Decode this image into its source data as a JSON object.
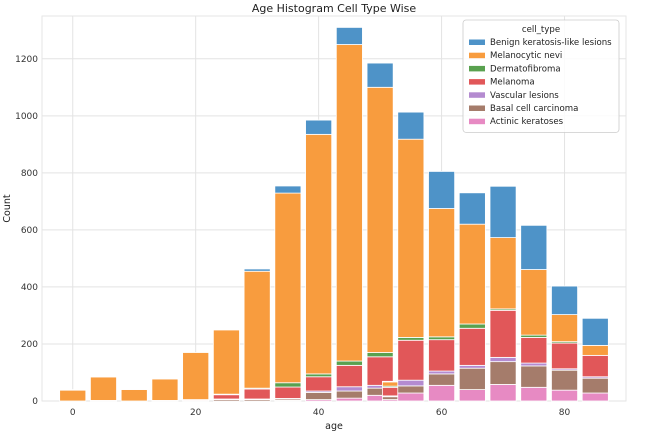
{
  "chart_data": {
    "type": "bar",
    "stacked": true,
    "title": "Age Histogram Cell Type Wise",
    "xlabel": "age",
    "ylabel": "Count",
    "xlim": [
      -5,
      90
    ],
    "ylim": [
      0,
      1350
    ],
    "xticks": [
      0,
      20,
      40,
      60,
      80
    ],
    "yticks": [
      0,
      200,
      400,
      600,
      800,
      1000,
      1200
    ],
    "grid": true,
    "legend": {
      "title": "cell_type",
      "placement": "top-right"
    },
    "bin_width": 4.25,
    "x": [
      0,
      5,
      10,
      15,
      20,
      25,
      30,
      35,
      40,
      45,
      50,
      52.5,
      55,
      60,
      65,
      70,
      75,
      80,
      85
    ],
    "series": [
      {
        "name": "Actinic keratoses",
        "color": "#e78ac3",
        "values": [
          0,
          0,
          0,
          0,
          0,
          0,
          0,
          2,
          5,
          10,
          20,
          5,
          28,
          55,
          40,
          58,
          48,
          38,
          28
        ]
      },
      {
        "name": "Basal cell carcinoma",
        "color": "#a57c6b",
        "values": [
          0,
          0,
          0,
          0,
          0,
          5,
          5,
          5,
          25,
          25,
          25,
          10,
          25,
          40,
          75,
          80,
          75,
          70,
          52
        ]
      },
      {
        "name": "Vascular lesions",
        "color": "#b48bd0",
        "values": [
          0,
          2,
          0,
          2,
          2,
          2,
          2,
          2,
          5,
          15,
          10,
          3,
          20,
          10,
          10,
          15,
          10,
          5,
          5
        ]
      },
      {
        "name": "Melanoma",
        "color": "#e15759",
        "values": [
          0,
          0,
          0,
          0,
          3,
          15,
          35,
          40,
          50,
          75,
          100,
          30,
          140,
          110,
          130,
          165,
          90,
          90,
          75
        ]
      },
      {
        "name": "Dermatofibroma",
        "color": "#59a14f",
        "values": [
          0,
          0,
          0,
          0,
          0,
          2,
          3,
          15,
          10,
          15,
          15,
          4,
          10,
          10,
          15,
          5,
          8,
          5,
          0
        ]
      },
      {
        "name": "Melanocytic nevi",
        "color": "#f89c3e",
        "values": [
          38,
          82,
          40,
          75,
          165,
          225,
          410,
          665,
          840,
          1110,
          930,
          15,
          695,
          450,
          350,
          250,
          230,
          95,
          35
        ]
      },
      {
        "name": "Benign keratosis-like lesions",
        "color": "#4e93c8",
        "values": [
          2,
          0,
          0,
          0,
          0,
          0,
          8,
          25,
          50,
          60,
          85,
          2,
          95,
          130,
          110,
          180,
          155,
          100,
          95
        ]
      }
    ],
    "legend_order": [
      "Benign keratosis-like lesions",
      "Melanocytic nevi",
      "Dermatofibroma",
      "Melanoma",
      "Vascular lesions",
      "Basal cell carcinoma",
      "Actinic keratoses"
    ]
  }
}
